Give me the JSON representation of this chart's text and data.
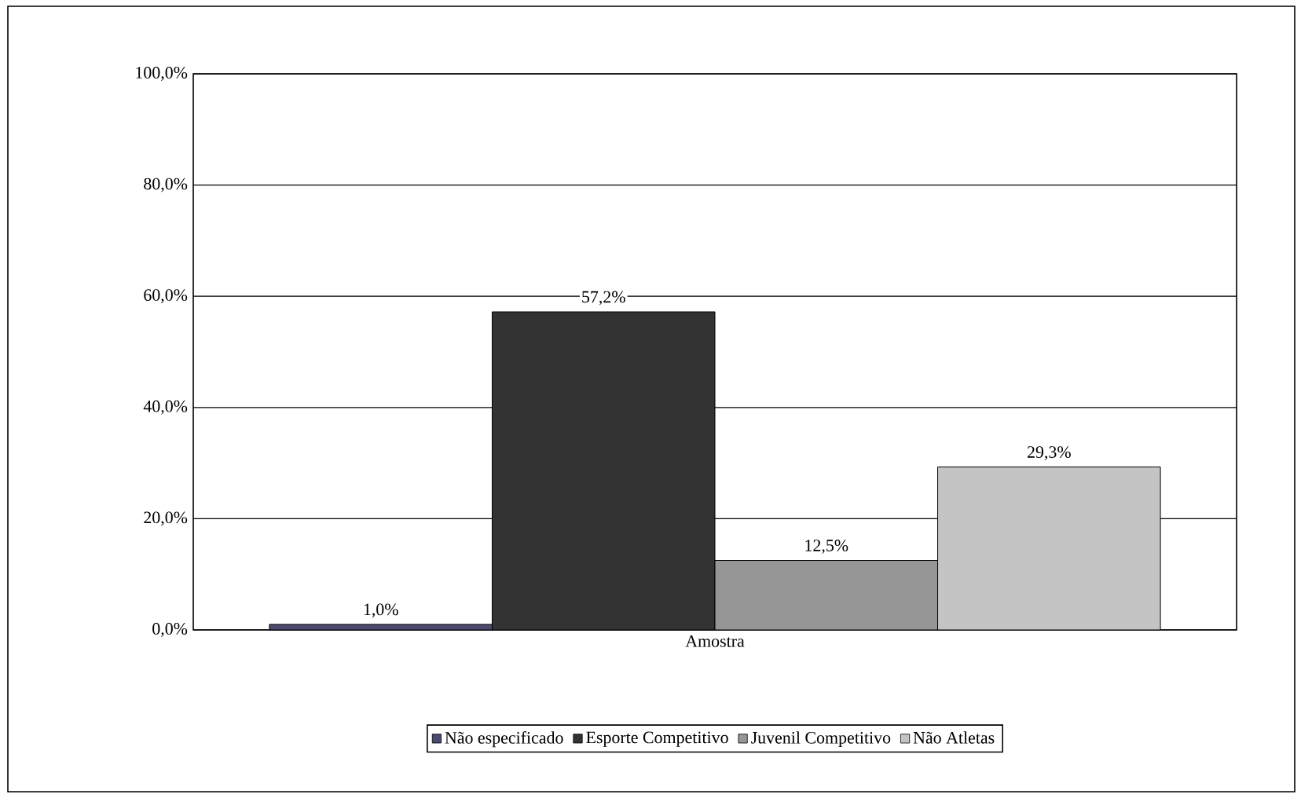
{
  "chart_data": {
    "type": "bar",
    "categories": [
      "Amostra"
    ],
    "series": [
      {
        "name": "Não especificado",
        "color": "#4a4a6e",
        "values": [
          1.0
        ],
        "value_labels": [
          "1,0%"
        ]
      },
      {
        "name": "Esporte Competitivo",
        "color": "#333333",
        "values": [
          57.2
        ],
        "value_labels": [
          "57,2%"
        ]
      },
      {
        "name": "Juvenil Competitivo",
        "color": "#969696",
        "values": [
          12.5
        ],
        "value_labels": [
          "12,5%"
        ]
      },
      {
        "name": "Não Atletas",
        "color": "#c4c4c4",
        "values": [
          29.3
        ],
        "value_labels": [
          "29,3%"
        ]
      }
    ],
    "ylim": [
      0,
      100
    ],
    "yticks": [
      {
        "value": 0,
        "label": "0,0%"
      },
      {
        "value": 20,
        "label": "20,0%"
      },
      {
        "value": 40,
        "label": "40,0%"
      },
      {
        "value": 60,
        "label": "60,0%"
      },
      {
        "value": 80,
        "label": "80,0%"
      },
      {
        "value": 100,
        "label": "100,0%"
      }
    ],
    "grid": "y",
    "legend": "bottom"
  }
}
